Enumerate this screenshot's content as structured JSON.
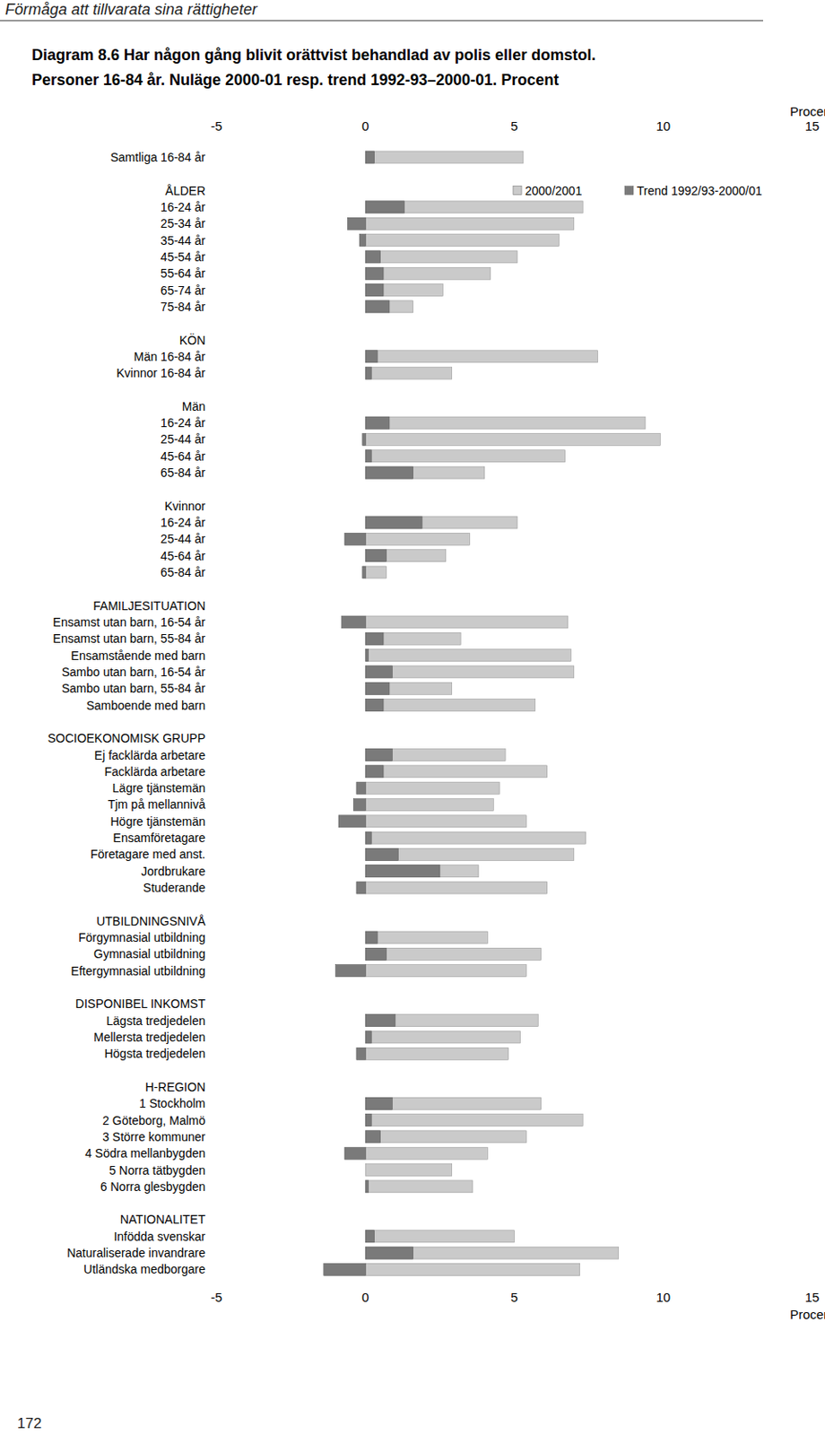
{
  "chart_data": {
    "type": "bar",
    "orientation": "horizontal",
    "title": "Diagram 8.6 Har någon gång blivit orättvist behandlad av polis eller domstol.",
    "subtitle": "Personer 16-84 år. Nuläge 2000-01 resp. trend 1992-93–2000-01. Procent",
    "x_label": "Procent",
    "annotations": [
      "Förmåga att tillvarata sina rättigheter",
      "172"
    ],
    "categories": [
      "Samtliga 16-84 år",
      "ÅLDER",
      "16-24 år",
      "25-34 år",
      "35-44 år",
      "45-54 år",
      "55-64 år",
      "65-74 år",
      "75-84 år",
      "KÖN",
      "Män 16-84 år",
      "Kvinnor 16-84 år",
      "Män",
      "16-24 år",
      "25-44 år",
      "45-64 år",
      "65-84 år",
      "Kvinnor",
      "16-24 år",
      "25-44 år",
      "45-64 år",
      "65-84 år",
      "FAMILJESITUATION",
      "Ensamst utan barn, 16-54 år",
      "Ensamst utan barn, 55-84 år",
      "Ensamstående med barn",
      "Sambo utan barn, 16-54 år",
      "Sambo utan barn, 55-84 år",
      "Samboende med barn",
      "SOCIOEKONOMISK GRUPP",
      "Ej facklärda arbetare",
      "Facklärda arbetare",
      "Lägre tjänstemän",
      "Tjm på mellannivå",
      "Högre tjänstemän",
      "Ensamföretagare",
      "Företagare med anst.",
      "Jordbrukare",
      "Studerande",
      "UTBILDNINGSNIVÅ",
      "Förgymnasial utbildning",
      "Gymnasial utbildning",
      "Eftergymnasial utbildning",
      "DISPONIBEL INKOMST",
      "Lägsta tredjedelen",
      "Mellersta tredjedelen",
      "Högsta tredjedelen",
      "H-REGION",
      "1 Stockholm",
      "2 Göteborg, Malmö",
      "3 Större kommuner",
      "4 Södra mellanbygden",
      "5 Norra tätbygden",
      "6 Norra glesbygden",
      "NATIONALITET",
      "Infödda svenskar",
      "Naturaliserade invandrare",
      "Utländska medborgare"
    ],
    "series": [
      {
        "name": "2000/2001",
        "color": "#cacaca",
        "values": [
          5.3,
          null,
          7.3,
          7.0,
          6.5,
          5.1,
          4.2,
          2.6,
          1.6,
          null,
          7.8,
          2.9,
          null,
          9.4,
          9.9,
          6.7,
          4.0,
          null,
          5.1,
          3.5,
          2.7,
          0.7,
          null,
          6.8,
          3.2,
          6.9,
          7.0,
          2.9,
          5.7,
          null,
          4.7,
          6.1,
          4.5,
          4.3,
          5.4,
          7.4,
          7.0,
          3.8,
          6.1,
          null,
          4.1,
          5.9,
          5.4,
          null,
          5.8,
          5.2,
          4.8,
          null,
          5.9,
          7.3,
          5.4,
          4.1,
          2.9,
          3.6,
          null,
          5.0,
          8.5,
          7.2
        ]
      },
      {
        "name": "Trend 1992/93-2000/01",
        "color": "#7a7a7a",
        "values": [
          0.3,
          null,
          1.3,
          -0.6,
          -0.2,
          0.5,
          0.6,
          0.6,
          0.8,
          null,
          0.4,
          0.2,
          null,
          0.8,
          -0.1,
          0.2,
          1.6,
          null,
          1.9,
          -0.7,
          0.7,
          -0.1,
          null,
          -0.8,
          0.6,
          0.1,
          0.9,
          0.8,
          0.6,
          null,
          0.9,
          0.6,
          -0.3,
          -0.4,
          -0.9,
          0.2,
          1.1,
          2.5,
          -0.3,
          null,
          0.4,
          0.7,
          -1.0,
          null,
          1.0,
          0.2,
          -0.3,
          null,
          0.9,
          0.2,
          0.5,
          -0.7,
          0,
          0.1,
          null,
          0.3,
          1.6,
          -1.4
        ]
      }
    ],
    "xlim": [
      -5,
      15
    ],
    "xticks": [
      -5,
      0,
      5,
      10,
      15
    ],
    "grid": false,
    "stacked": false,
    "legend": "upper right"
  }
}
